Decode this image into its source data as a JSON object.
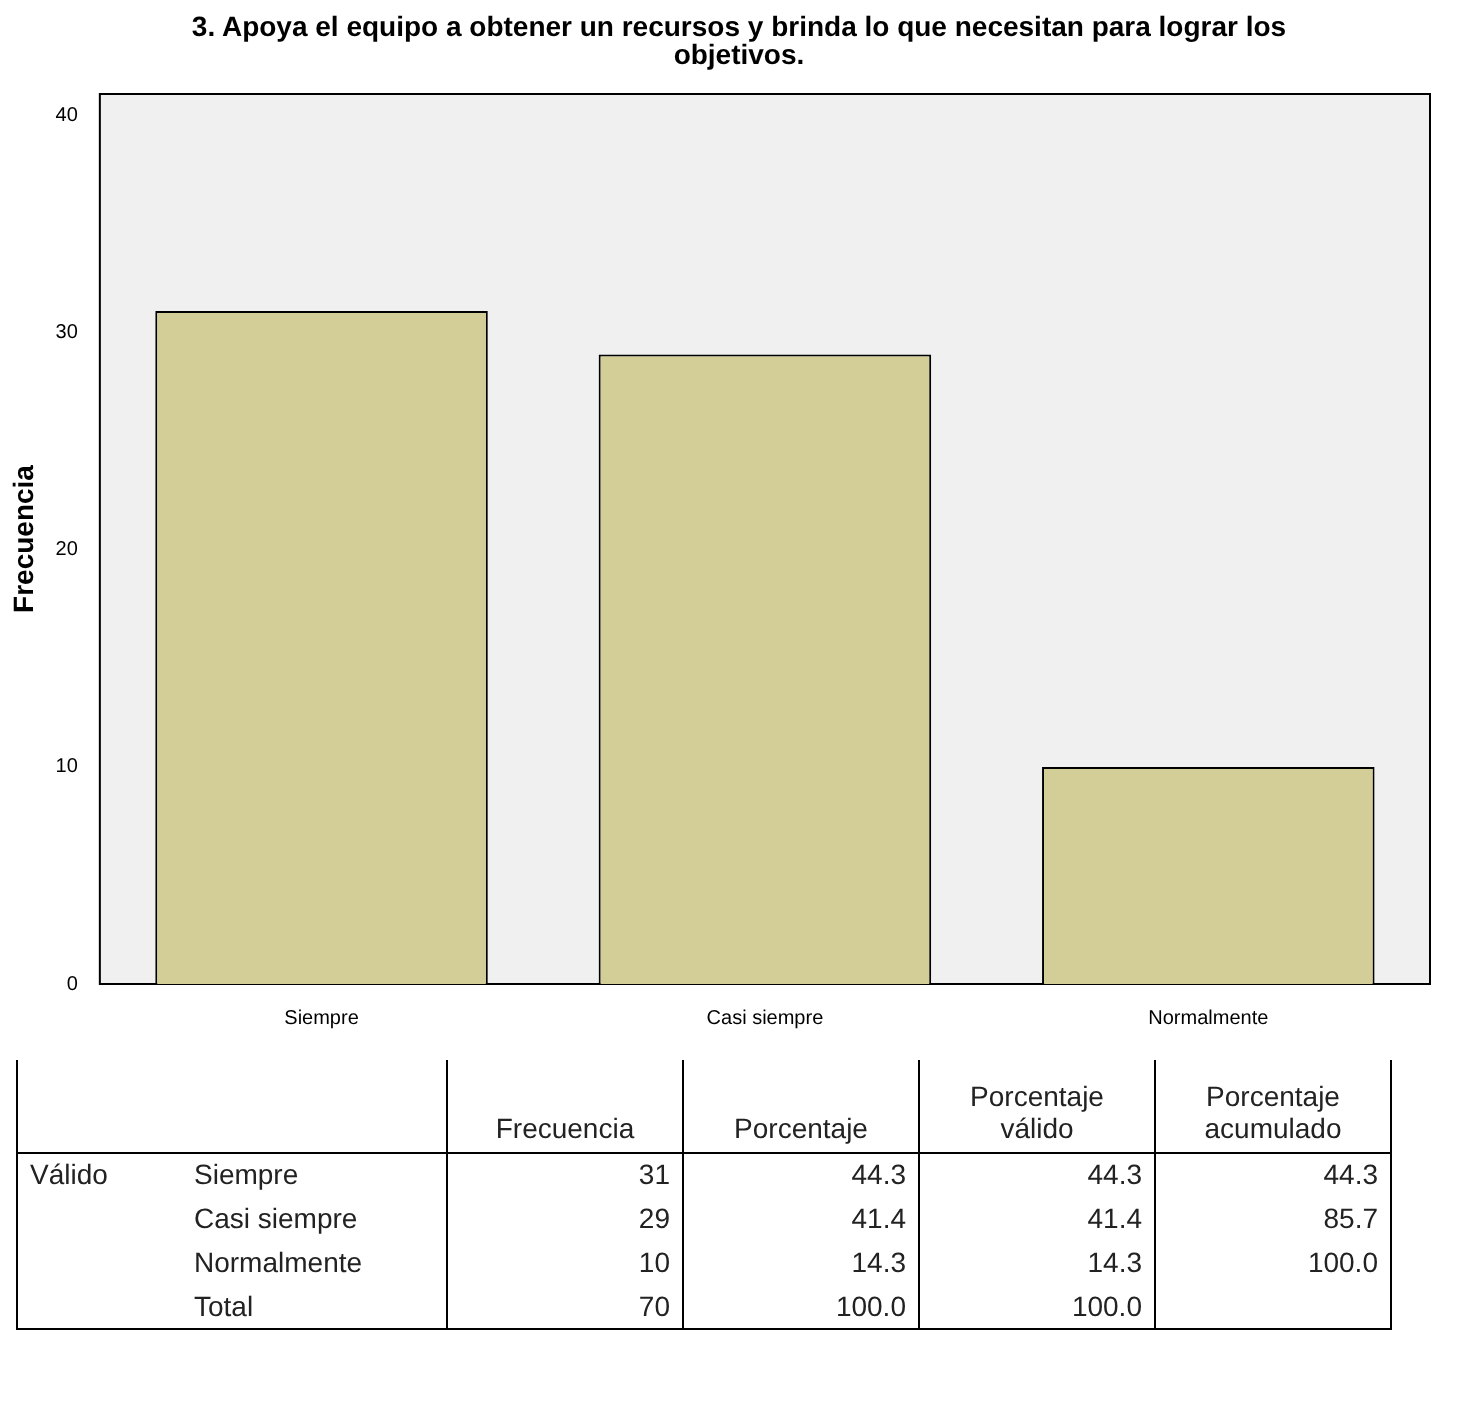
{
  "chart_data": {
    "type": "bar",
    "title": "3. Apoya el equipo a obtener un recursos y brinda lo que necesitan para lograr los objetivos.",
    "ylabel": "Frecuencia",
    "categories": [
      "Siempre",
      "Casi siempre",
      "Normalmente"
    ],
    "values": [
      31,
      29,
      10
    ],
    "color": "#d3ce97",
    "ylim": [
      0,
      41
    ],
    "yticks": [
      0,
      10,
      20,
      30,
      40
    ],
    "grid": false,
    "legend": false,
    "annotations": [
      "Frecuencia",
      "Porcentaje",
      "Porcentaje válido",
      "Porcentaje acumulado",
      "Válido",
      "31",
      "44.3",
      "44.3",
      "44.3",
      "29",
      "41.4",
      "41.4",
      "85.7",
      "10",
      "14.3",
      "14.3",
      "100.0",
      "Total",
      "70",
      "100.0",
      "100.0"
    ]
  }
}
